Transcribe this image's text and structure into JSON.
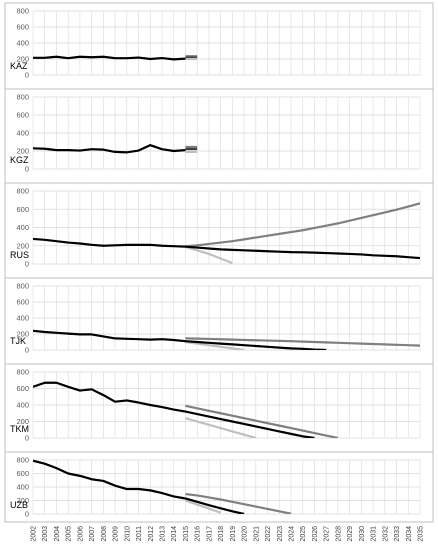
{
  "chart_data": {
    "type": "line",
    "x": [
      2002,
      2003,
      2004,
      2005,
      2006,
      2007,
      2008,
      2009,
      2010,
      2011,
      2012,
      2013,
      2014,
      2015,
      2016,
      2017,
      2018,
      2019,
      2020,
      2021,
      2022,
      2023,
      2024,
      2025,
      2026,
      2027,
      2028,
      2029,
      2030,
      2031,
      2032,
      2033,
      2034,
      2035
    ],
    "ylim": [
      0,
      800
    ],
    "yticks": [
      0,
      200,
      400,
      600,
      800
    ],
    "grid": true,
    "colors": {
      "historical": "#000000",
      "upper": "#7f7f7f",
      "middle": "#3f3f3f",
      "lower": "#bfbfbf",
      "grid": "#d9d9d9",
      "border": "#bfbfbf"
    },
    "panels": [
      {
        "label": "KAZ",
        "historical": {
          "x_start": 2002,
          "values": [
            215,
            215,
            228,
            210,
            228,
            222,
            228,
            210,
            210,
            218,
            200,
            212,
            195,
            205
          ]
        },
        "projections": [
          {
            "style": "upper",
            "x_start": 2015,
            "values": [
              235,
              235
            ]
          },
          {
            "style": "middle",
            "x_start": 2015,
            "values": [
              218,
              218
            ]
          },
          {
            "style": "lower",
            "x_start": 2015,
            "values": [
              200,
              200
            ]
          }
        ]
      },
      {
        "label": "KGZ",
        "historical": {
          "x_start": 2002,
          "values": [
            230,
            225,
            210,
            210,
            205,
            220,
            215,
            190,
            185,
            205,
            265,
            220,
            200,
            210
          ]
        },
        "projections": [
          {
            "style": "upper",
            "x_start": 2015,
            "values": [
              245,
              245
            ]
          },
          {
            "style": "middle",
            "x_start": 2015,
            "values": [
              222,
              222
            ]
          },
          {
            "style": "lower",
            "x_start": 2015,
            "values": [
              190,
              190
            ]
          }
        ]
      },
      {
        "label": "RUS",
        "historical": {
          "x_start": 2002,
          "values": [
            275,
            265,
            250,
            235,
            225,
            210,
            200,
            205,
            210,
            210,
            210,
            200,
            195,
            190,
            180,
            170,
            160,
            155,
            150,
            145,
            140,
            135,
            130,
            128,
            125,
            120,
            115,
            110,
            105,
            95,
            90,
            85,
            75,
            65
          ]
        },
        "projections": [
          {
            "style": "upper",
            "x_start": 2015,
            "values": [
              195,
              205,
              220,
              235,
              250,
              270,
              290,
              310,
              330,
              350,
              370,
              395,
              420,
              445,
              475,
              505,
              535,
              565,
              595,
              630,
              665,
              700,
              745
            ]
          },
          {
            "style": "lower",
            "x_start": 2015,
            "values": [
              185,
              150,
              110,
              60,
              10
            ]
          }
        ]
      },
      {
        "label": "TJK",
        "historical": {
          "x_start": 2002,
          "values": [
            240,
            225,
            215,
            205,
            195,
            195,
            170,
            145,
            140,
            135,
            130,
            135,
            125,
            110,
            100,
            90,
            80,
            70,
            60,
            50,
            40,
            30,
            20,
            15,
            5,
            0
          ]
        },
        "projections": [
          {
            "style": "upper",
            "x_start": 2015,
            "values": [
              145,
              142,
              138,
              134,
              130,
              126,
              122,
              118,
              114,
              110,
              105,
              100,
              95,
              90,
              85,
              80,
              75,
              70,
              65,
              60,
              55,
              50
            ]
          },
          {
            "style": "lower",
            "x_start": 2015,
            "values": [
              100,
              80,
              60,
              40,
              20,
              0
            ]
          }
        ]
      },
      {
        "label": "TKM",
        "historical": {
          "x_start": 2002,
          "values": [
            620,
            670,
            670,
            620,
            575,
            590,
            520,
            440,
            455,
            430,
            400,
            375,
            345,
            320,
            290,
            260,
            230,
            200,
            170,
            140,
            110,
            80,
            50,
            20,
            0
          ]
        },
        "projections": [
          {
            "style": "upper",
            "x_start": 2015,
            "values": [
              390,
              360,
              330,
              300,
              270,
              240,
              210,
              180,
              150,
              120,
              90,
              60,
              30,
              0
            ]
          },
          {
            "style": "lower",
            "x_start": 2015,
            "values": [
              240,
              200,
              160,
              120,
              80,
              40,
              0
            ]
          }
        ]
      },
      {
        "label": "UZB",
        "historical": {
          "x_start": 2002,
          "values": [
            790,
            745,
            680,
            600,
            565,
            515,
            490,
            420,
            370,
            370,
            350,
            310,
            260,
            230,
            180,
            130,
            85,
            40,
            0
          ]
        },
        "projections": [
          {
            "style": "upper",
            "x_start": 2015,
            "values": [
              295,
              275,
              245,
              215,
              180,
              145,
              110,
              75,
              40,
              5
            ]
          },
          {
            "style": "lower",
            "x_start": 2015,
            "values": [
              200,
              140,
              80,
              20
            ]
          }
        ]
      }
    ]
  }
}
